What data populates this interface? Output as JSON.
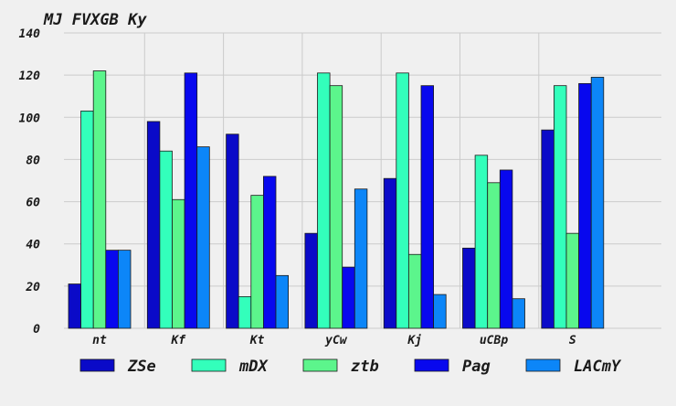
{
  "chart_data": {
    "type": "bar",
    "title": "MJ FVXGB Ky",
    "xlabel": "",
    "ylabel": "",
    "categories": [
      "nt",
      "Kf",
      "Kt",
      "yCw",
      "Kj",
      "uCBp",
      "S"
    ],
    "ylim": [
      0,
      140
    ],
    "yticks": [
      0,
      20,
      40,
      60,
      80,
      100,
      120,
      140
    ],
    "grid": true,
    "legend_position": "bottom",
    "series": [
      {
        "name": "ZSe",
        "color": "#0a0ac8",
        "values": [
          21,
          98,
          92,
          45,
          71,
          38,
          94
        ]
      },
      {
        "name": "mDX",
        "color": "#33ffbb",
        "values": [
          103,
          84,
          15,
          121,
          121,
          82,
          115
        ]
      },
      {
        "name": "ztb",
        "color": "#5cf58c",
        "values": [
          122,
          61,
          63,
          115,
          35,
          69,
          45
        ]
      },
      {
        "name": "Pag",
        "color": "#0808ee",
        "values": [
          37,
          121,
          72,
          29,
          115,
          75,
          116
        ]
      },
      {
        "name": "LACmY",
        "color": "#0c86f8",
        "values": [
          37,
          86,
          25,
          66,
          16,
          14,
          119
        ]
      }
    ]
  }
}
